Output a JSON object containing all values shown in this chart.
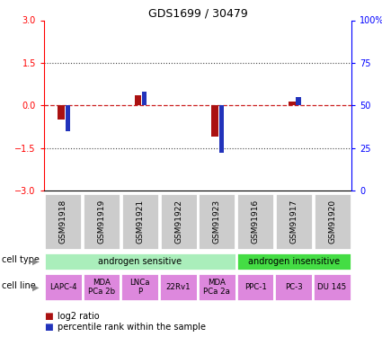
{
  "title": "GDS1699 / 30479",
  "samples": [
    "GSM91918",
    "GSM91919",
    "GSM91921",
    "GSM91922",
    "GSM91923",
    "GSM91916",
    "GSM91917",
    "GSM91920"
  ],
  "log2_ratio": [
    -0.5,
    0.0,
    0.35,
    0.0,
    -1.1,
    0.0,
    0.12,
    0.0
  ],
  "percentile_rank_pct": [
    35,
    0,
    58,
    0,
    22,
    0,
    55,
    0
  ],
  "ylim": [
    -3,
    3
  ],
  "y2lim": [
    0,
    100
  ],
  "yticks": [
    -3,
    -1.5,
    0,
    1.5,
    3
  ],
  "y2ticks": [
    0,
    25,
    50,
    75,
    100
  ],
  "bar_color_red": "#aa1111",
  "bar_color_blue": "#2233bb",
  "dotted_line_color": "#444444",
  "zero_line_color": "#cc2222",
  "cell_type_groups": [
    {
      "label": "androgen sensitive",
      "start": 0,
      "end": 5,
      "color": "#aaeebb"
    },
    {
      "label": "androgen insensitive",
      "start": 5,
      "end": 8,
      "color": "#44dd44"
    }
  ],
  "cell_lines": [
    {
      "label": "LAPC-4",
      "start": 0,
      "end": 1
    },
    {
      "label": "MDA\nPCa 2b",
      "start": 1,
      "end": 2
    },
    {
      "label": "LNCa\nP",
      "start": 2,
      "end": 3
    },
    {
      "label": "22Rv1",
      "start": 3,
      "end": 4
    },
    {
      "label": "MDA\nPCa 2a",
      "start": 4,
      "end": 5
    },
    {
      "label": "PPC-1",
      "start": 5,
      "end": 6
    },
    {
      "label": "PC-3",
      "start": 6,
      "end": 7
    },
    {
      "label": "DU 145",
      "start": 7,
      "end": 8
    }
  ],
  "cell_line_color": "#dd88dd",
  "gsm_box_color": "#cccccc",
  "legend_red_label": "log2 ratio",
  "legend_blue_label": "percentile rank within the sample",
  "red_bar_width": 0.18,
  "blue_bar_width": 0.12
}
